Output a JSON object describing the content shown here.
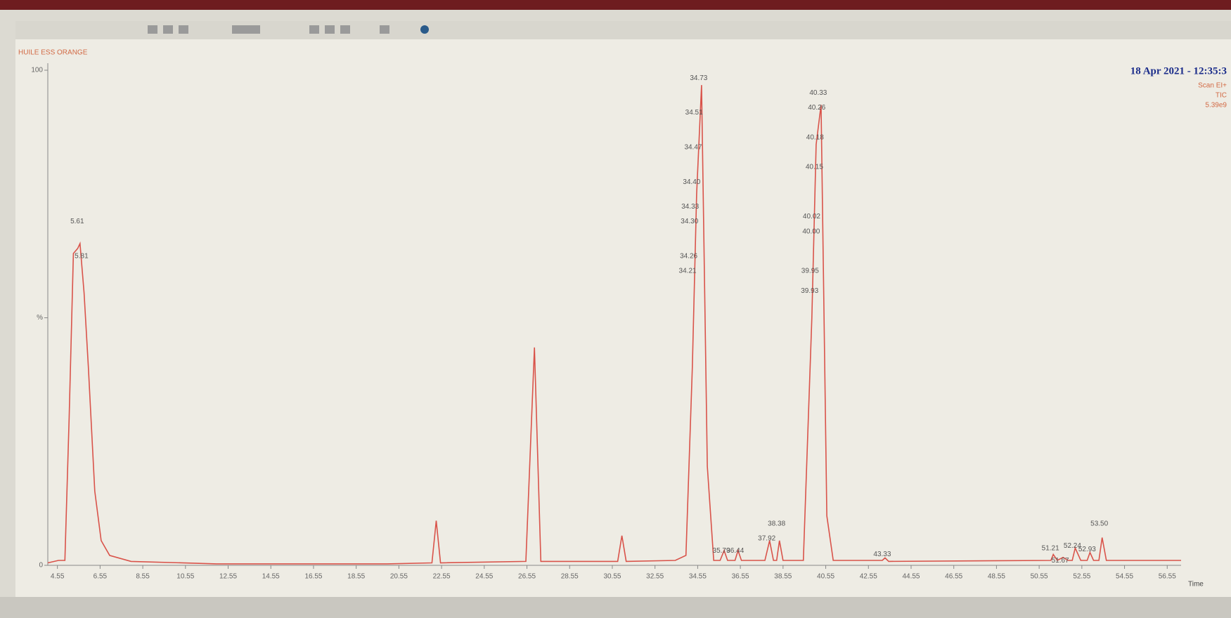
{
  "chart_data": {
    "type": "line",
    "title": "HUILE ESS ORANGE",
    "date": "18 Apr 2021 - 12:35:3",
    "info": [
      "Scan EI+",
      "TIC",
      "5.39e9"
    ],
    "x_label": "Time",
    "xlim": [
      4.1,
      57.2
    ],
    "ylim": [
      0,
      100
    ],
    "xticks": [
      4.55,
      6.55,
      8.55,
      10.55,
      12.55,
      14.55,
      16.55,
      18.55,
      20.55,
      22.55,
      24.55,
      26.55,
      28.55,
      30.55,
      32.55,
      34.55,
      36.55,
      38.55,
      40.55,
      42.55,
      44.55,
      46.55,
      48.55,
      50.55,
      52.55,
      54.55,
      56.55
    ],
    "yticks": [
      0,
      {
        "value": 50,
        "label": "%"
      },
      100
    ],
    "series": [
      {
        "name": "TIC",
        "color": "#d9534a",
        "x": [
          4.1,
          4.6,
          4.9,
          5.1,
          5.3,
          5.5,
          5.61,
          5.8,
          6.0,
          6.3,
          6.6,
          7.0,
          8.0,
          12.0,
          20.0,
          22.1,
          22.3,
          22.5,
          26.5,
          26.9,
          27.2,
          30.8,
          31.0,
          31.2,
          33.5,
          34.0,
          34.3,
          34.5,
          34.73,
          35.0,
          35.3,
          35.6,
          35.79,
          35.95,
          36.3,
          36.44,
          36.6,
          37.7,
          37.92,
          38.1,
          38.25,
          38.38,
          38.55,
          39.5,
          39.9,
          40.1,
          40.33,
          40.6,
          40.9,
          43.2,
          43.33,
          43.5,
          51.1,
          51.21,
          51.4,
          51.67,
          51.9,
          52.1,
          52.24,
          52.5,
          52.8,
          52.93,
          53.1,
          53.35,
          53.5,
          53.7,
          57.2
        ],
        "values": [
          0.5,
          1,
          1,
          30,
          63,
          64,
          65,
          55,
          40,
          15,
          5,
          2,
          0.8,
          0.3,
          0.3,
          0.5,
          9,
          0.5,
          0.8,
          44,
          0.8,
          0.8,
          6,
          0.8,
          1,
          2,
          40,
          75,
          97,
          20,
          1,
          1,
          3,
          1,
          1,
          3,
          1,
          1,
          5,
          1,
          1,
          5,
          1,
          1,
          50,
          85,
          93,
          10,
          1,
          1,
          1.5,
          0.8,
          1,
          2.2,
          1,
          1.6,
          1,
          1,
          3.5,
          1,
          1,
          2.6,
          1,
          1,
          5.6,
          1,
          1
        ]
      }
    ],
    "peak_labels": [
      {
        "text": "5.61",
        "x": 5.61,
        "y": 68
      },
      {
        "text": "5.81",
        "x": 5.81,
        "y": 61
      },
      {
        "text": "34.73",
        "x": 34.73,
        "y": 97
      },
      {
        "text": "34.51",
        "x": 34.51,
        "y": 90
      },
      {
        "text": "34.47",
        "x": 34.47,
        "y": 83
      },
      {
        "text": "34.40",
        "x": 34.4,
        "y": 76
      },
      {
        "text": "34.33",
        "x": 34.33,
        "y": 71
      },
      {
        "text": "34.30",
        "x": 34.3,
        "y": 68
      },
      {
        "text": "34.26",
        "x": 34.26,
        "y": 61
      },
      {
        "text": "34.21",
        "x": 34.21,
        "y": 58
      },
      {
        "text": "40.33",
        "x": 40.33,
        "y": 94
      },
      {
        "text": "40.26",
        "x": 40.26,
        "y": 91
      },
      {
        "text": "40.18",
        "x": 40.18,
        "y": 85
      },
      {
        "text": "40.15",
        "x": 40.15,
        "y": 79
      },
      {
        "text": "40.02",
        "x": 40.02,
        "y": 69
      },
      {
        "text": "40.00",
        "x": 40.0,
        "y": 66
      },
      {
        "text": "39.95",
        "x": 39.95,
        "y": 58
      },
      {
        "text": "39.93",
        "x": 39.93,
        "y": 54
      },
      {
        "text": "38.38",
        "x": 38.38,
        "y": 7
      },
      {
        "text": "37.92",
        "x": 37.92,
        "y": 4
      },
      {
        "text": "35.79",
        "x": 35.79,
        "y": 1.5
      },
      {
        "text": "36.44",
        "x": 36.44,
        "y": 1.5
      },
      {
        "text": "43.33",
        "x": 43.33,
        "y": 0.8
      },
      {
        "text": "51.67",
        "x": 51.67,
        "y": -0.5
      },
      {
        "text": "51.21",
        "x": 51.21,
        "y": 2
      },
      {
        "text": "52.24",
        "x": 52.24,
        "y": 2.5
      },
      {
        "text": "52.93",
        "x": 52.93,
        "y": 1.8
      },
      {
        "text": "53.50",
        "x": 53.5,
        "y": 7
      }
    ]
  }
}
